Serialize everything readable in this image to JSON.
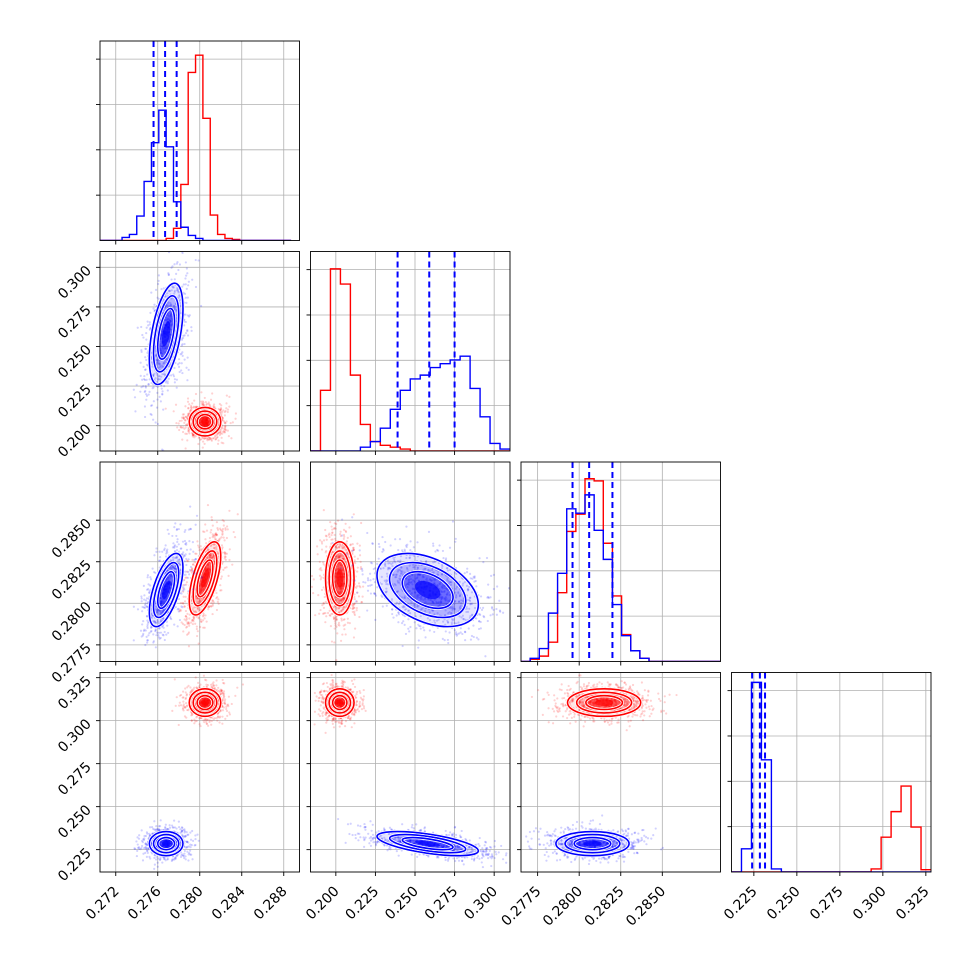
{
  "chart_data": {
    "type": "corner",
    "description_free": true,
    "colors": {
      "series_a": "#ff0000",
      "series_b": "#0000ff"
    },
    "grid": true,
    "series": [
      {
        "color": "#ff0000",
        "mean": [
          0.2805,
          0.2025,
          0.2815,
          0.3105
        ],
        "sd": [
          0.00075,
          0.0045,
          0.0011,
          0.004
        ],
        "corr": [
          [
            1,
            0,
            0.6,
            0
          ],
          [
            0,
            1,
            0,
            0
          ],
          [
            0.6,
            0,
            1,
            0
          ],
          [
            0,
            0,
            0,
            1
          ]
        ]
      },
      {
        "color": "#0000ff",
        "mean": [
          0.2768,
          0.258,
          0.2808,
          0.2285
        ],
        "sd": [
          0.0008,
          0.016,
          0.0011,
          0.0035
        ],
        "corr": [
          [
            1,
            0.5,
            0.6,
            0
          ],
          [
            0.5,
            1,
            -0.4,
            -0.6
          ],
          [
            0.6,
            -0.4,
            1,
            0
          ],
          [
            0,
            -0.6,
            0,
            1
          ]
        ]
      }
    ],
    "quantiles_blue": [
      [
        0.2756,
        0.2767,
        0.2778
      ],
      [
        0.239,
        0.259,
        0.275
      ],
      [
        0.2796,
        0.2806,
        0.282
      ],
      [
        0.224,
        0.2285,
        0.2315
      ]
    ],
    "axes": [
      {
        "ticks": [
          0.272,
          0.276,
          0.28,
          0.284,
          0.288
        ],
        "tick_labels": [
          "0.272",
          "0.276",
          "0.280",
          "0.284",
          "0.288"
        ],
        "range": [
          0.2705,
          0.2895
        ]
      },
      {
        "ticks": [
          0.2,
          0.225,
          0.25,
          0.275,
          0.3
        ],
        "tick_labels": [
          "0.200",
          "0.225",
          "0.250",
          "0.275",
          "0.300"
        ],
        "range": [
          0.184,
          0.31
        ]
      },
      {
        "ticks": [
          0.2775,
          0.28,
          0.2825,
          0.285
        ],
        "tick_labels": [
          "0.2775",
          "0.2800",
          "0.2825",
          "0.2850"
        ],
        "range": [
          0.2765,
          0.2885
        ]
      },
      {
        "ticks": [
          0.225,
          0.25,
          0.275,
          0.3,
          0.325
        ],
        "tick_labels": [
          "0.225",
          "0.250",
          "0.275",
          "0.300",
          "0.325"
        ],
        "range": [
          0.212,
          0.328
        ]
      }
    ],
    "histograms": [
      {
        "edges": [
          0.2705,
          0.2712,
          0.2719,
          0.2726,
          0.2733,
          0.274,
          0.2747,
          0.2754,
          0.2761,
          0.2768,
          0.2775,
          0.2782,
          0.2789,
          0.2796,
          0.2803,
          0.281,
          0.2817,
          0.2824,
          0.2831,
          0.2838,
          0.2845,
          0.2852,
          0.2859,
          0.2866,
          0.2873,
          0.288,
          0.2887
        ],
        "red": [
          0,
          0,
          0,
          0,
          0,
          0,
          0,
          0,
          0,
          2,
          12,
          55,
          165,
          182,
          120,
          25,
          6,
          2,
          1,
          0,
          0,
          0,
          0,
          0,
          0,
          0
        ],
        "blue": [
          0,
          0,
          0,
          3,
          6,
          24,
          58,
          96,
          128,
          92,
          38,
          13,
          5,
          2,
          0,
          0,
          0,
          0,
          0,
          0,
          0,
          0,
          0,
          0,
          0,
          0
        ],
        "ymax": 190
      },
      {
        "edges": [
          0.184,
          0.1903,
          0.1966,
          0.2029,
          0.2092,
          0.2155,
          0.2218,
          0.2281,
          0.2344,
          0.2407,
          0.247,
          0.2533,
          0.2596,
          0.2659,
          0.2722,
          0.2785,
          0.2848,
          0.2911,
          0.2974,
          0.3037,
          0.31
        ],
        "red": [
          0,
          32,
          96,
          88,
          40,
          14,
          5,
          3,
          2,
          1,
          0,
          0,
          0,
          0,
          0,
          0,
          0,
          0,
          0,
          0
        ],
        "blue": [
          0,
          0,
          0,
          0,
          0,
          2,
          5,
          12,
          22,
          32,
          38,
          40,
          44,
          46,
          48,
          50,
          33,
          18,
          4,
          1
        ],
        "ymax": 102
      },
      {
        "edges": [
          0.2765,
          0.27705,
          0.2776,
          0.27815,
          0.2787,
          0.27925,
          0.2798,
          0.28035,
          0.2809,
          0.28145,
          0.282,
          0.28255,
          0.2831,
          0.28365,
          0.2842,
          0.28475,
          0.2853,
          0.28585,
          0.2864,
          0.28695,
          0.2875,
          0.28805,
          0.2886
        ],
        "red": [
          0,
          2,
          5,
          18,
          64,
          121,
          137,
          170,
          168,
          110,
          61,
          25,
          10,
          3,
          0,
          0,
          0,
          0,
          0,
          0,
          0,
          0
        ],
        "blue": [
          0,
          3,
          12,
          45,
          82,
          142,
          138,
          155,
          122,
          95,
          53,
          24,
          10,
          3,
          0,
          0,
          0,
          0,
          0,
          0,
          0,
          0
        ],
        "ymax": 180
      },
      {
        "edges": [
          0.212,
          0.2178,
          0.2236,
          0.2294,
          0.2352,
          0.241,
          0.2468,
          0.2526,
          0.2584,
          0.2642,
          0.27,
          0.2758,
          0.2816,
          0.2874,
          0.2932,
          0.299,
          0.3048,
          0.3106,
          0.3164,
          0.3222,
          0.328
        ],
        "red": [
          0,
          0,
          0,
          0,
          0,
          0,
          0,
          0,
          0,
          0,
          0,
          0,
          0,
          0,
          4,
          45,
          78,
          111,
          58,
          3
        ],
        "blue": [
          0,
          30,
          245,
          145,
          4,
          0,
          0,
          0,
          0,
          0,
          0,
          0,
          0,
          0,
          0,
          0,
          0,
          0,
          0,
          0
        ],
        "ymax": 250
      }
    ]
  }
}
